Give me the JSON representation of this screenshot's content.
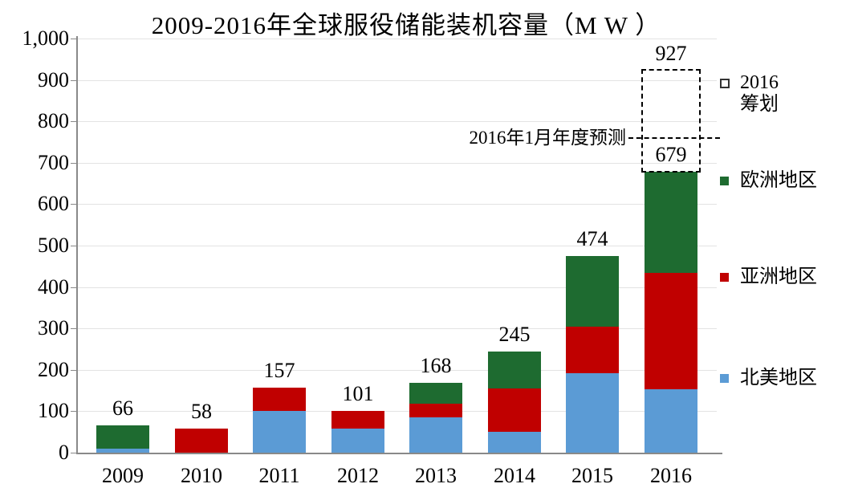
{
  "title": "2009-2016年全球服役储能装机容量（M W ）",
  "chart_data": {
    "type": "bar",
    "stacked": true,
    "title": "2009-2016年全球服役储能装机容量（M W ）",
    "unit": "MW",
    "categories": [
      "2009",
      "2010",
      "2011",
      "2012",
      "2013",
      "2014",
      "2015",
      "2016"
    ],
    "series": [
      {
        "name": "北美地区",
        "color": "#5B9BD5",
        "values": [
          10,
          0,
          100,
          58,
          85,
          50,
          192,
          153
        ]
      },
      {
        "name": "亚洲地区",
        "color": "#C00000",
        "values": [
          0,
          58,
          57,
          43,
          33,
          105,
          112,
          281
        ]
      },
      {
        "name": "欧洲地区",
        "color": "#1E6B30",
        "values": [
          56,
          0,
          0,
          0,
          50,
          90,
          170,
          245
        ]
      }
    ],
    "totals_labels": [
      "66",
      "58",
      "157",
      "101",
      "168",
      "245",
      "474",
      "679"
    ],
    "planned": {
      "category": "2016",
      "name": "2016 筹划",
      "additional_value": 248,
      "total_value": 927,
      "total_label": "927",
      "style": "dashed-outline-box"
    },
    "annotation": {
      "text": "2016年1月年度预测",
      "value": 760,
      "line_style": "dashed"
    },
    "ylim": [
      0,
      1000
    ],
    "ytick_step": 100,
    "ytick_labels": [
      "0",
      "100",
      "200",
      "300",
      "400",
      "500",
      "600",
      "700",
      "800",
      "900",
      "1,000"
    ],
    "grid": true,
    "legend_position": "right",
    "legend": [
      {
        "label_lines": [
          "2016",
          "筹划"
        ],
        "swatch": "dashed"
      },
      {
        "label_lines": [
          "欧洲地区"
        ],
        "swatch": "#1E6B30"
      },
      {
        "label_lines": [
          "亚洲地区"
        ],
        "swatch": "#C00000"
      },
      {
        "label_lines": [
          "北美地区"
        ],
        "swatch": "#5B9BD5"
      }
    ],
    "colors": {
      "north_america": "#5B9BD5",
      "asia": "#C00000",
      "europe": "#1E6B30",
      "grid": "#E3E3E3",
      "axis": "#898989"
    }
  }
}
